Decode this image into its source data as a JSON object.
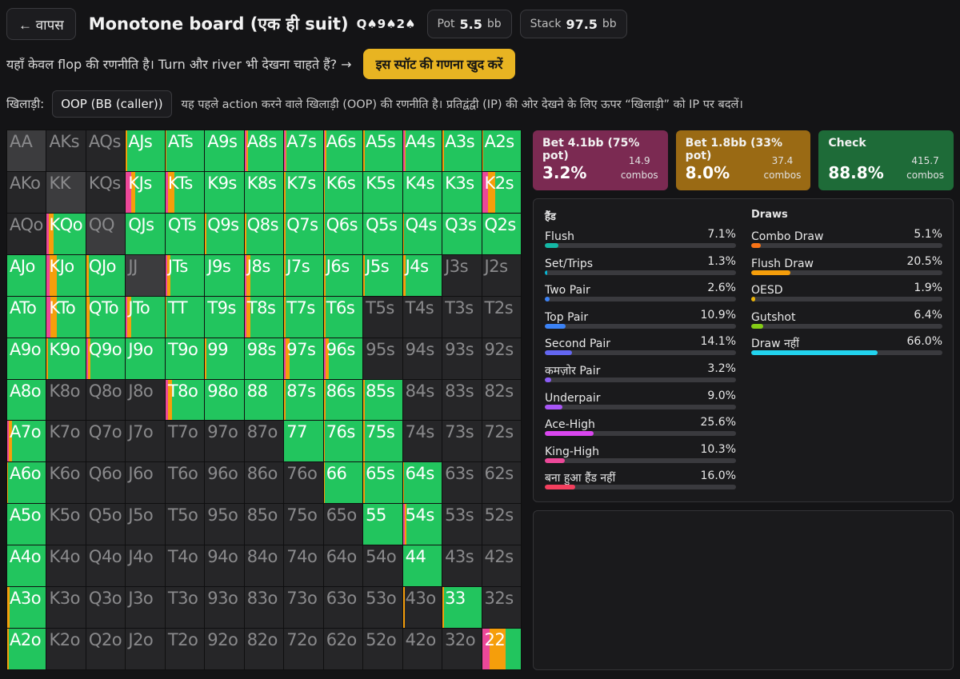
{
  "header": {
    "back_label": "← वापस",
    "title": "Monotone board (एक ही suit)",
    "board": "Q♠9♠2♠",
    "pot_label": "Pot",
    "pot_value": "5.5",
    "pot_unit": "bb",
    "stack_label": "Stack",
    "stack_value": "97.5",
    "stack_unit": "bb"
  },
  "notice": {
    "text": "यहाँ केवल flop की रणनीति है। Turn और river भी देखना चाहते हैं? →",
    "cta_label": "इस स्पॉट की गणना खुद करें"
  },
  "player": {
    "label": "खिलाड़ी:",
    "selected": "OOP (BB (caller))",
    "hint": "यह पहले action करने वाले खिलाड़ी (OOP) की रणनीति है। प्रतिद्वंद्वी (IP) की ओर देखने के लिए ऊपर “खिलाड़ी” को IP पर बदलें।"
  },
  "actions": [
    {
      "name": "Bet 4.1bb (75% pot)",
      "pct": "3.2%",
      "combos": "14.9",
      "combos_label": "combos",
      "color": "#7b2a52"
    },
    {
      "name": "Bet 1.8bb (33% pot)",
      "pct": "8.0%",
      "combos": "37.4",
      "combos_label": "combos",
      "color": "#9a6a14"
    },
    {
      "name": "Check",
      "pct": "88.8%",
      "combos": "415.7",
      "combos_label": "combos",
      "color": "#1e6b38"
    }
  ],
  "colors": {
    "check": "#22c55e",
    "bet_small": "#f59e0b",
    "bet_big": "#ec4899"
  },
  "hand_stats": {
    "title": "हैंड",
    "items": [
      {
        "name": "Flush",
        "value": "7.1%",
        "pct": 7.1,
        "color": "#14b8a6"
      },
      {
        "name": "Set/Trips",
        "value": "1.3%",
        "pct": 1.3,
        "color": "#06b6d4"
      },
      {
        "name": "Two Pair",
        "value": "2.6%",
        "pct": 2.6,
        "color": "#3b82f6"
      },
      {
        "name": "Top Pair",
        "value": "10.9%",
        "pct": 10.9,
        "color": "#3b82f6"
      },
      {
        "name": "Second Pair",
        "value": "14.1%",
        "pct": 14.1,
        "color": "#6366f1"
      },
      {
        "name": "कमज़ोर Pair",
        "value": "3.2%",
        "pct": 3.2,
        "color": "#8b5cf6"
      },
      {
        "name": "Underpair",
        "value": "9.0%",
        "pct": 9.0,
        "color": "#a855f7"
      },
      {
        "name": "Ace-High",
        "value": "25.6%",
        "pct": 25.6,
        "color": "#d946ef"
      },
      {
        "name": "King-High",
        "value": "10.3%",
        "pct": 10.3,
        "color": "#ec4899"
      },
      {
        "name": "बना हुआ हैंड नहीं",
        "value": "16.0%",
        "pct": 16.0,
        "color": "#f43f5e"
      }
    ]
  },
  "draw_stats": {
    "title": "Draws",
    "items": [
      {
        "name": "Combo Draw",
        "value": "5.1%",
        "pct": 5.1,
        "color": "#f97316"
      },
      {
        "name": "Flush Draw",
        "value": "20.5%",
        "pct": 20.5,
        "color": "#f59e0b"
      },
      {
        "name": "OESD",
        "value": "1.9%",
        "pct": 1.9,
        "color": "#eab308"
      },
      {
        "name": "Gutshot",
        "value": "6.4%",
        "pct": 6.4,
        "color": "#84cc16"
      },
      {
        "name": "Draw नहीं",
        "value": "66.0%",
        "pct": 66.0,
        "color": "#22d3ee"
      }
    ]
  },
  "grid": [
    [
      {
        "h": "AA",
        "s": "blocked"
      },
      {
        "h": "AKs",
        "s": "off"
      },
      {
        "h": "AQs",
        "s": "off"
      },
      {
        "h": "AJs",
        "m": [
          0,
          4,
          96
        ]
      },
      {
        "h": "ATs",
        "m": [
          0,
          3,
          97
        ]
      },
      {
        "h": "A9s",
        "m": [
          0,
          0,
          100
        ]
      },
      {
        "h": "A8s",
        "m": [
          4,
          4,
          92
        ]
      },
      {
        "h": "A7s",
        "m": [
          3,
          3,
          94
        ]
      },
      {
        "h": "A6s",
        "m": [
          3,
          3,
          94
        ]
      },
      {
        "h": "A5s",
        "m": [
          0,
          3,
          97
        ]
      },
      {
        "h": "A4s",
        "m": [
          4,
          4,
          92
        ]
      },
      {
        "h": "A3s",
        "m": [
          0,
          3,
          97
        ]
      },
      {
        "h": "A2s",
        "m": [
          0,
          4,
          96
        ]
      }
    ],
    [
      {
        "h": "AKo",
        "s": "off"
      },
      {
        "h": "KK",
        "s": "blocked"
      },
      {
        "h": "KQs",
        "s": "off"
      },
      {
        "h": "KJs",
        "m": [
          14,
          10,
          76
        ]
      },
      {
        "h": "KTs",
        "m": [
          6,
          16,
          78
        ]
      },
      {
        "h": "K9s",
        "m": [
          0,
          0,
          100
        ]
      },
      {
        "h": "K8s",
        "m": [
          0,
          0,
          100
        ]
      },
      {
        "h": "K7s",
        "m": [
          0,
          3,
          97
        ]
      },
      {
        "h": "K6s",
        "m": [
          0,
          3,
          97
        ]
      },
      {
        "h": "K5s",
        "m": [
          0,
          0,
          100
        ]
      },
      {
        "h": "K4s",
        "m": [
          0,
          0,
          100
        ]
      },
      {
        "h": "K3s",
        "m": [
          0,
          0,
          100
        ]
      },
      {
        "h": "K2s",
        "m": [
          16,
          18,
          66
        ]
      }
    ],
    [
      {
        "h": "AQo",
        "s": "off"
      },
      {
        "h": "KQo",
        "m": [
          6,
          12,
          82
        ]
      },
      {
        "h": "QQ",
        "s": "blocked"
      },
      {
        "h": "QJs",
        "m": [
          0,
          0,
          100
        ]
      },
      {
        "h": "QTs",
        "m": [
          0,
          0,
          100
        ]
      },
      {
        "h": "Q9s",
        "m": [
          0,
          4,
          96
        ]
      },
      {
        "h": "Q8s",
        "m": [
          0,
          4,
          96
        ]
      },
      {
        "h": "Q7s",
        "m": [
          0,
          4,
          96
        ]
      },
      {
        "h": "Q6s",
        "m": [
          0,
          3,
          97
        ]
      },
      {
        "h": "Q5s",
        "m": [
          0,
          0,
          100
        ]
      },
      {
        "h": "Q4s",
        "m": [
          0,
          3,
          97
        ]
      },
      {
        "h": "Q3s",
        "m": [
          0,
          0,
          100
        ]
      },
      {
        "h": "Q2s",
        "m": [
          0,
          0,
          100
        ]
      }
    ],
    [
      {
        "h": "AJo",
        "m": [
          0,
          0,
          100
        ]
      },
      {
        "h": "KJo",
        "m": [
          8,
          18,
          74
        ]
      },
      {
        "h": "QJo",
        "m": [
          0,
          6,
          94
        ]
      },
      {
        "h": "JJ",
        "s": "blocked"
      },
      {
        "h": "JTs",
        "m": [
          4,
          8,
          88
        ]
      },
      {
        "h": "J9s",
        "m": [
          0,
          0,
          100
        ]
      },
      {
        "h": "J8s",
        "m": [
          4,
          10,
          86
        ]
      },
      {
        "h": "J7s",
        "m": [
          0,
          4,
          96
        ]
      },
      {
        "h": "J6s",
        "m": [
          0,
          4,
          96
        ]
      },
      {
        "h": "J5s",
        "m": [
          0,
          3,
          97
        ]
      },
      {
        "h": "J4s",
        "m": [
          0,
          6,
          94
        ]
      },
      {
        "h": "J3s",
        "s": "off"
      },
      {
        "h": "J2s",
        "s": "off"
      }
    ],
    [
      {
        "h": "ATo",
        "m": [
          0,
          0,
          100
        ]
      },
      {
        "h": "KTo",
        "m": [
          10,
          16,
          74
        ]
      },
      {
        "h": "QTo",
        "m": [
          0,
          8,
          92
        ]
      },
      {
        "h": "JTo",
        "m": [
          4,
          10,
          86
        ]
      },
      {
        "h": "TT",
        "m": [
          0,
          3,
          97
        ]
      },
      {
        "h": "T9s",
        "m": [
          0,
          0,
          100
        ]
      },
      {
        "h": "T8s",
        "m": [
          4,
          10,
          86
        ]
      },
      {
        "h": "T7s",
        "m": [
          0,
          4,
          96
        ]
      },
      {
        "h": "T6s",
        "m": [
          0,
          4,
          96
        ]
      },
      {
        "h": "T5s",
        "s": "off"
      },
      {
        "h": "T4s",
        "s": "off"
      },
      {
        "h": "T3s",
        "s": "off"
      },
      {
        "h": "T2s",
        "s": "off"
      }
    ],
    [
      {
        "h": "A9o",
        "m": [
          0,
          0,
          100
        ]
      },
      {
        "h": "K9o",
        "m": [
          0,
          3,
          97
        ]
      },
      {
        "h": "Q9o",
        "m": [
          4,
          6,
          90
        ]
      },
      {
        "h": "J9o",
        "m": [
          0,
          0,
          100
        ]
      },
      {
        "h": "T9o",
        "m": [
          0,
          0,
          100
        ]
      },
      {
        "h": "99",
        "m": [
          0,
          3,
          97
        ]
      },
      {
        "h": "98s",
        "m": [
          0,
          0,
          100
        ]
      },
      {
        "h": "97s",
        "m": [
          4,
          10,
          86
        ]
      },
      {
        "h": "96s",
        "m": [
          4,
          10,
          86
        ]
      },
      {
        "h": "95s",
        "s": "off"
      },
      {
        "h": "94s",
        "s": "off"
      },
      {
        "h": "93s",
        "s": "off"
      },
      {
        "h": "92s",
        "s": "off"
      }
    ],
    [
      {
        "h": "A8o",
        "m": [
          0,
          0,
          100
        ]
      },
      {
        "h": "K8o",
        "s": "off"
      },
      {
        "h": "Q8o",
        "s": "off"
      },
      {
        "h": "J8o",
        "s": "off"
      },
      {
        "h": "T8o",
        "m": [
          6,
          10,
          84
        ]
      },
      {
        "h": "98o",
        "m": [
          0,
          0,
          100
        ]
      },
      {
        "h": "88",
        "m": [
          0,
          0,
          100
        ]
      },
      {
        "h": "87s",
        "m": [
          0,
          4,
          96
        ]
      },
      {
        "h": "86s",
        "m": [
          0,
          4,
          96
        ]
      },
      {
        "h": "85s",
        "m": [
          0,
          3,
          97
        ]
      },
      {
        "h": "84s",
        "s": "off"
      },
      {
        "h": "83s",
        "s": "off"
      },
      {
        "h": "82s",
        "s": "off"
      }
    ],
    [
      {
        "h": "A7o",
        "m": [
          4,
          8,
          88
        ]
      },
      {
        "h": "K7o",
        "s": "off"
      },
      {
        "h": "Q7o",
        "s": "off"
      },
      {
        "h": "J7o",
        "s": "off"
      },
      {
        "h": "T7o",
        "s": "off"
      },
      {
        "h": "97o",
        "s": "off"
      },
      {
        "h": "87o",
        "s": "off"
      },
      {
        "h": "77",
        "m": [
          0,
          0,
          100
        ]
      },
      {
        "h": "76s",
        "m": [
          0,
          3,
          97
        ]
      },
      {
        "h": "75s",
        "m": [
          0,
          3,
          97
        ]
      },
      {
        "h": "74s",
        "s": "off"
      },
      {
        "h": "73s",
        "s": "off"
      },
      {
        "h": "72s",
        "s": "off"
      }
    ],
    [
      {
        "h": "A6o",
        "m": [
          0,
          3,
          97
        ]
      },
      {
        "h": "K6o",
        "s": "off"
      },
      {
        "h": "Q6o",
        "s": "off"
      },
      {
        "h": "J6o",
        "s": "off"
      },
      {
        "h": "T6o",
        "s": "off"
      },
      {
        "h": "96o",
        "s": "off"
      },
      {
        "h": "86o",
        "s": "off"
      },
      {
        "h": "76o",
        "s": "off"
      },
      {
        "h": "66",
        "m": [
          0,
          3,
          97
        ]
      },
      {
        "h": "65s",
        "m": [
          0,
          3,
          97
        ]
      },
      {
        "h": "64s",
        "m": [
          0,
          3,
          97
        ]
      },
      {
        "h": "63s",
        "s": "off"
      },
      {
        "h": "62s",
        "s": "off"
      }
    ],
    [
      {
        "h": "A5o",
        "m": [
          0,
          0,
          100
        ]
      },
      {
        "h": "K5o",
        "s": "off"
      },
      {
        "h": "Q5o",
        "s": "off"
      },
      {
        "h": "J5o",
        "s": "off"
      },
      {
        "h": "T5o",
        "s": "off"
      },
      {
        "h": "95o",
        "s": "off"
      },
      {
        "h": "85o",
        "s": "off"
      },
      {
        "h": "75o",
        "s": "off"
      },
      {
        "h": "65o",
        "s": "off"
      },
      {
        "h": "55",
        "m": [
          0,
          0,
          100
        ]
      },
      {
        "h": "54s",
        "m": [
          4,
          6,
          90
        ]
      },
      {
        "h": "53s",
        "s": "off"
      },
      {
        "h": "52s",
        "s": "off"
      }
    ],
    [
      {
        "h": "A4o",
        "m": [
          0,
          0,
          100
        ]
      },
      {
        "h": "K4o",
        "s": "off"
      },
      {
        "h": "Q4o",
        "s": "off"
      },
      {
        "h": "J4o",
        "s": "off"
      },
      {
        "h": "T4o",
        "s": "off"
      },
      {
        "h": "94o",
        "s": "off"
      },
      {
        "h": "84o",
        "s": "off"
      },
      {
        "h": "74o",
        "s": "off"
      },
      {
        "h": "64o",
        "s": "off"
      },
      {
        "h": "54o",
        "s": "off"
      },
      {
        "h": "44",
        "m": [
          0,
          0,
          100
        ]
      },
      {
        "h": "43s",
        "s": "off"
      },
      {
        "h": "42s",
        "s": "off"
      }
    ],
    [
      {
        "h": "A3o",
        "m": [
          0,
          6,
          94
        ]
      },
      {
        "h": "K3o",
        "s": "off"
      },
      {
        "h": "Q3o",
        "s": "off"
      },
      {
        "h": "J3o",
        "s": "off"
      },
      {
        "h": "T3o",
        "s": "off"
      },
      {
        "h": "93o",
        "s": "off"
      },
      {
        "h": "83o",
        "s": "off"
      },
      {
        "h": "73o",
        "s": "off"
      },
      {
        "h": "63o",
        "s": "off"
      },
      {
        "h": "53o",
        "s": "off"
      },
      {
        "h": "43o",
        "s": "off",
        "m": [
          0,
          4,
          0
        ]
      },
      {
        "h": "33",
        "m": [
          0,
          3,
          97
        ]
      },
      {
        "h": "32s",
        "s": "off"
      }
    ],
    [
      {
        "h": "A2o",
        "m": [
          0,
          4,
          96
        ]
      },
      {
        "h": "K2o",
        "s": "off"
      },
      {
        "h": "Q2o",
        "s": "off"
      },
      {
        "h": "J2o",
        "s": "off"
      },
      {
        "h": "T2o",
        "s": "off"
      },
      {
        "h": "92o",
        "s": "off"
      },
      {
        "h": "82o",
        "s": "off"
      },
      {
        "h": "72o",
        "s": "off"
      },
      {
        "h": "62o",
        "s": "off"
      },
      {
        "h": "52o",
        "s": "off"
      },
      {
        "h": "42o",
        "s": "off"
      },
      {
        "h": "32o",
        "s": "off"
      },
      {
        "h": "22",
        "m": [
          20,
          40,
          40
        ]
      }
    ]
  ]
}
